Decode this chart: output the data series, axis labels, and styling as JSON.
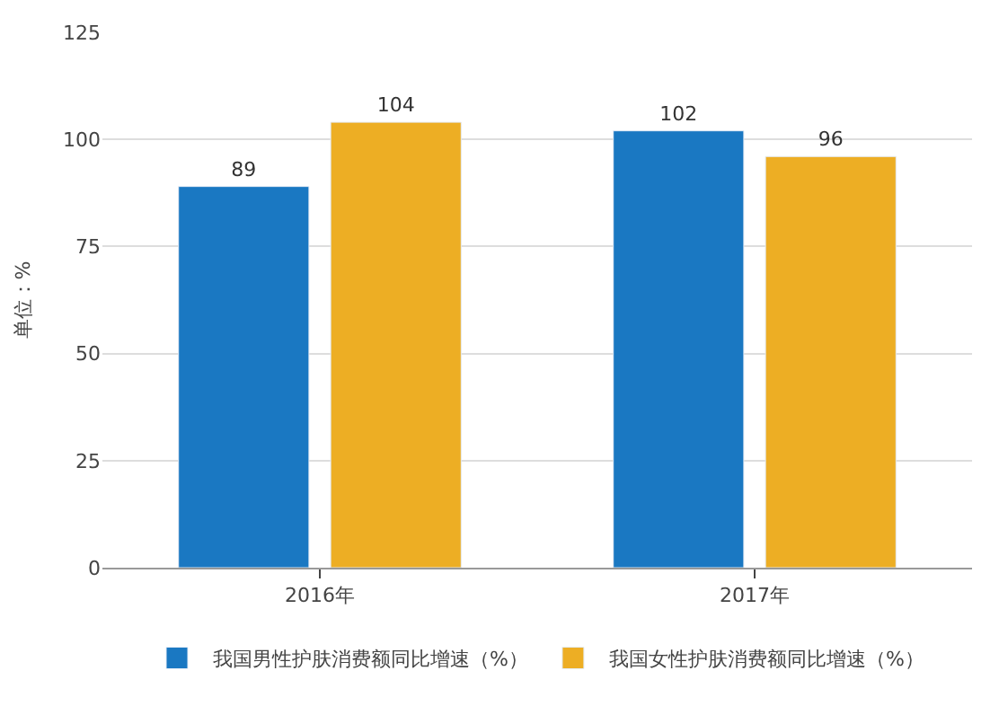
{
  "chart_data": {
    "type": "bar",
    "ylabel": "单位：%",
    "categories": [
      "2016年",
      "2017年"
    ],
    "series": [
      {
        "name": "我国男性护肤消费额同比增速（%）",
        "color": "#1a78c2",
        "values": [
          89,
          102
        ]
      },
      {
        "name": "我国女性护肤消费额同比增速（%）",
        "color": "#edae24",
        "values": [
          104,
          96
        ]
      }
    ],
    "ylim": [
      0,
      125
    ],
    "yticks": [
      0,
      25,
      50,
      75,
      100,
      125
    ],
    "grid": "y",
    "legend": "bottom",
    "data_labels": true
  }
}
